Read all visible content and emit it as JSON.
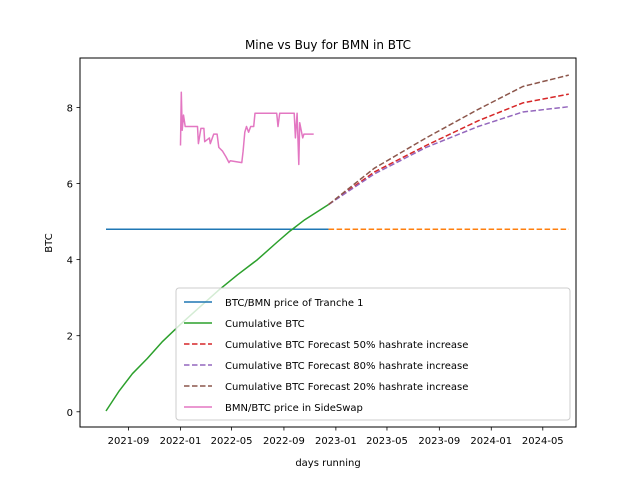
{
  "chart_data": {
    "type": "line",
    "title": "Mine vs Buy for BMN in BTC",
    "xlabel": "days running",
    "ylabel": "BTC",
    "x_ticks": [
      "2021-09",
      "2022-01",
      "2022-05",
      "2022-09",
      "2023-01",
      "2023-05",
      "2023-09",
      "2024-01",
      "2024-05"
    ],
    "y_ticks": [
      "0",
      "2",
      "4",
      "6",
      "8"
    ],
    "xlim": [
      "2021-05-10",
      "2024-07-18"
    ],
    "ylim": [
      -0.4,
      9.3
    ],
    "legend_position": "lower-right",
    "series": [
      {
        "name": "BTC/BMN price of Tranche 1",
        "color": "#1f77b4",
        "style": "solid",
        "points": [
          [
            "2021-07-10",
            4.8
          ],
          [
            "2022-12-15",
            4.8
          ]
        ]
      },
      {
        "name": "Cumulative BTC",
        "color": "#2ca02c",
        "style": "solid",
        "points": [
          [
            "2021-07-10",
            0.02
          ],
          [
            "2021-08-10",
            0.55
          ],
          [
            "2021-09-10",
            1.0
          ],
          [
            "2021-10-15",
            1.4
          ],
          [
            "2021-11-20",
            1.85
          ],
          [
            "2022-01-01",
            2.3
          ],
          [
            "2022-02-15",
            2.75
          ],
          [
            "2022-04-01",
            3.2
          ],
          [
            "2022-05-15",
            3.6
          ],
          [
            "2022-07-01",
            4.0
          ],
          [
            "2022-08-15",
            4.45
          ],
          [
            "2022-09-15",
            4.75
          ],
          [
            "2022-10-20",
            5.05
          ],
          [
            "2022-12-15",
            5.45
          ]
        ]
      },
      {
        "name": "",
        "color": "#ff7f0e",
        "style": "dashed",
        "points": [
          [
            "2022-12-15",
            4.8
          ],
          [
            "2024-07-01",
            4.8
          ]
        ]
      },
      {
        "name": "Cumulative BTC Forecast 50% hashrate increase",
        "color": "#d62728",
        "style": "dashed",
        "points": [
          [
            "2022-12-15",
            5.45
          ],
          [
            "2023-04-01",
            6.3
          ],
          [
            "2023-08-01",
            7.0
          ],
          [
            "2023-12-01",
            7.65
          ],
          [
            "2024-03-15",
            8.12
          ],
          [
            "2024-07-01",
            8.35
          ]
        ]
      },
      {
        "name": "Cumulative BTC Forecast 80% hashrate increase",
        "color": "#9467bd",
        "style": "dashed",
        "points": [
          [
            "2022-12-15",
            5.45
          ],
          [
            "2023-04-01",
            6.25
          ],
          [
            "2023-08-01",
            6.95
          ],
          [
            "2023-12-01",
            7.5
          ],
          [
            "2024-03-15",
            7.88
          ],
          [
            "2024-07-01",
            8.02
          ]
        ]
      },
      {
        "name": "Cumulative BTC Forecast 20% hashrate increase",
        "color": "#8c564b",
        "style": "dashed",
        "points": [
          [
            "2022-12-15",
            5.45
          ],
          [
            "2023-04-01",
            6.4
          ],
          [
            "2023-08-01",
            7.2
          ],
          [
            "2023-12-01",
            7.95
          ],
          [
            "2024-03-15",
            8.55
          ],
          [
            "2024-07-01",
            8.85
          ]
        ]
      },
      {
        "name": "BMN/BTC price in SideSwap",
        "color": "#e377c2",
        "style": "solid",
        "points": [
          [
            "2022-01-01",
            7.0
          ],
          [
            "2022-01-03",
            8.4
          ],
          [
            "2022-01-05",
            7.4
          ],
          [
            "2022-01-08",
            7.8
          ],
          [
            "2022-01-12",
            7.5
          ],
          [
            "2022-02-10",
            7.5
          ],
          [
            "2022-02-12",
            7.05
          ],
          [
            "2022-02-18",
            7.45
          ],
          [
            "2022-02-25",
            7.45
          ],
          [
            "2022-02-27",
            7.1
          ],
          [
            "2022-03-10",
            7.2
          ],
          [
            "2022-03-12",
            7.05
          ],
          [
            "2022-03-20",
            7.3
          ],
          [
            "2022-03-28",
            7.3
          ],
          [
            "2022-04-01",
            6.95
          ],
          [
            "2022-04-10",
            6.85
          ],
          [
            "2022-04-18",
            6.7
          ],
          [
            "2022-04-25",
            6.55
          ],
          [
            "2022-04-28",
            6.6
          ],
          [
            "2022-05-25",
            6.55
          ],
          [
            "2022-05-28",
            6.85
          ],
          [
            "2022-06-01",
            7.35
          ],
          [
            "2022-06-05",
            7.5
          ],
          [
            "2022-06-10",
            7.35
          ],
          [
            "2022-06-15",
            7.5
          ],
          [
            "2022-06-22",
            7.5
          ],
          [
            "2022-06-25",
            7.85
          ],
          [
            "2022-08-15",
            7.85
          ],
          [
            "2022-08-18",
            7.5
          ],
          [
            "2022-08-22",
            7.85
          ],
          [
            "2022-09-25",
            7.85
          ],
          [
            "2022-09-28",
            7.2
          ],
          [
            "2022-10-02",
            7.85
          ],
          [
            "2022-10-06",
            6.5
          ],
          [
            "2022-10-08",
            7.6
          ],
          [
            "2022-10-15",
            7.2
          ],
          [
            "2022-10-18",
            7.3
          ],
          [
            "2022-11-10",
            7.3
          ]
        ]
      }
    ]
  }
}
